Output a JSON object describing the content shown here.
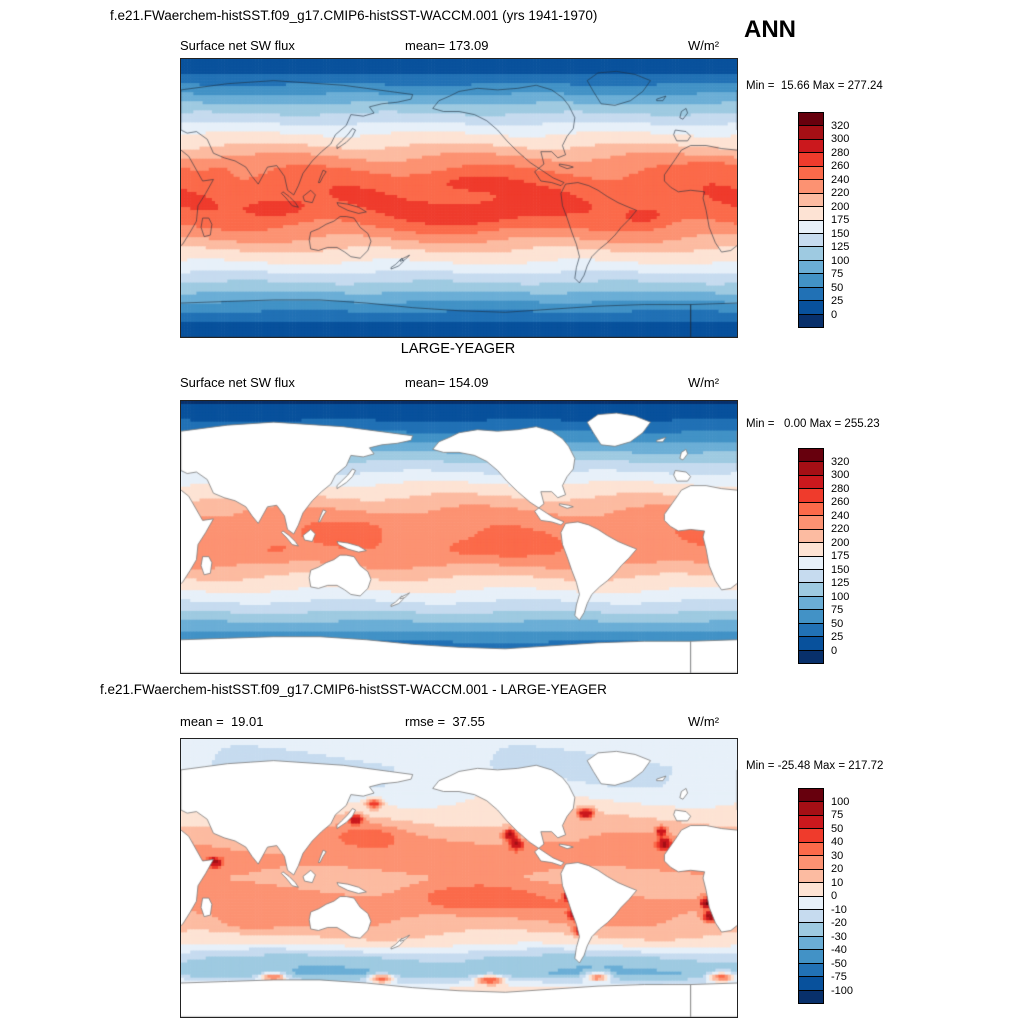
{
  "figure": {
    "title_top": "f.e21.FWaerchem-histSST.f09_g17.CMIP6-histSST-WACCM.001 (yrs 1941-1970)",
    "season": "ANN",
    "obs_label": "LARGE-YEAGER",
    "title_diff": "f.e21.FWaerchem-histSST.f09_g17.CMIP6-histSST-WACCM.001 - LARGE-YEAGER"
  },
  "panels": [
    {
      "var_label": "Surface net SW flux",
      "mean_label": "mean= 173.09",
      "units": "W/m²",
      "minmax": "Min =  15.66 Max = 277.24"
    },
    {
      "var_label": "Surface net SW flux",
      "mean_label": "mean= 154.09",
      "units": "W/m²",
      "minmax": "Min =   0.00 Max = 255.23"
    },
    {
      "mean_label": "mean =  19.01",
      "rmse_label": "rmse =  37.55",
      "units": "W/m²",
      "minmax": "Min = -25.48 Max = 217.72"
    }
  ],
  "colorbars": {
    "flux": {
      "levels": [
        320,
        300,
        280,
        260,
        240,
        220,
        200,
        175,
        150,
        125,
        100,
        75,
        50,
        25,
        0
      ],
      "colors_top_to_bottom": [
        "#67000d",
        "#a50f15",
        "#cb181d",
        "#ef3b2c",
        "#fb6a4a",
        "#fc9272",
        "#fcbba1",
        "#fde3d4",
        "#e7f0f9",
        "#c6dbef",
        "#9ecae1",
        "#6baed6",
        "#4292c6",
        "#2171b5",
        "#08519c",
        "#08306b"
      ]
    },
    "diff": {
      "levels": [
        100,
        75,
        50,
        40,
        30,
        20,
        10,
        0,
        -10,
        -20,
        -30,
        -40,
        -50,
        -75,
        -100
      ],
      "colors_top_to_bottom": [
        "#67000d",
        "#a50f15",
        "#cb181d",
        "#ef3b2c",
        "#fb6a4a",
        "#fc9272",
        "#fcbba1",
        "#fde3d4",
        "#e7f0f9",
        "#c6dbef",
        "#9ecae1",
        "#6baed6",
        "#4292c6",
        "#2171b5",
        "#08519c",
        "#08306b"
      ]
    }
  },
  "chart_data": [
    {
      "type": "heatmap",
      "title": "f.e21.FWaerchem-histSST.f09_g17.CMIP6-histSST-WACCM.001 (yrs 1941-1970)",
      "variable": "Surface net SW flux",
      "units": "W/m2",
      "season": "ANN",
      "stats": {
        "mean": 173.09,
        "min": 15.66,
        "max": 277.24
      },
      "colorbar_levels": [
        0,
        25,
        50,
        75,
        100,
        125,
        150,
        175,
        200,
        220,
        240,
        260,
        280,
        300,
        320
      ],
      "projection": "global latitude-longitude map, Pacific-centered",
      "legend_position": "right",
      "zonal_mean_estimate": {
        "lat": [
          -90,
          -60,
          -45,
          -30,
          -15,
          0,
          15,
          30,
          45,
          60,
          90
        ],
        "value": [
          30,
          80,
          150,
          210,
          250,
          255,
          250,
          210,
          160,
          95,
          25
        ]
      }
    },
    {
      "type": "heatmap",
      "title": "LARGE-YEAGER",
      "variable": "Surface net SW flux",
      "units": "W/m2",
      "stats": {
        "mean": 154.09,
        "min": 0.0,
        "max": 255.23
      },
      "colorbar_levels": [
        0,
        25,
        50,
        75,
        100,
        125,
        150,
        175,
        200,
        220,
        240,
        260,
        280,
        300,
        320
      ],
      "projection": "global latitude-longitude map, Pacific-centered, land masked white",
      "legend_position": "right",
      "zonal_mean_estimate": {
        "lat": [
          -90,
          -60,
          -45,
          -30,
          -15,
          0,
          15,
          30,
          45,
          60,
          90
        ],
        "value": [
          5,
          70,
          140,
          200,
          240,
          245,
          240,
          200,
          150,
          85,
          10
        ]
      }
    },
    {
      "type": "heatmap",
      "title": "f.e21.FWaerchem-histSST.f09_g17.CMIP6-histSST-WACCM.001 - LARGE-YEAGER",
      "variable": "Surface net SW flux difference (model minus observations)",
      "units": "W/m2",
      "stats": {
        "mean": 19.01,
        "rmse": 37.55,
        "min": -25.48,
        "max": 217.72
      },
      "colorbar_levels": [
        -100,
        -75,
        -50,
        -40,
        -30,
        -20,
        -10,
        0,
        10,
        20,
        30,
        40,
        50,
        75,
        100
      ],
      "projection": "global latitude-longitude map, Pacific-centered, land masked white",
      "legend_position": "right",
      "zonal_mean_estimate": {
        "lat": [
          -90,
          -62,
          -52,
          -42,
          -30,
          -15,
          0,
          15,
          30,
          45,
          60,
          75,
          90
        ],
        "value": [
          6,
          -30,
          -22,
          4,
          18,
          25,
          18,
          24,
          12,
          2,
          -8,
          -10,
          -4
        ]
      }
    }
  ]
}
